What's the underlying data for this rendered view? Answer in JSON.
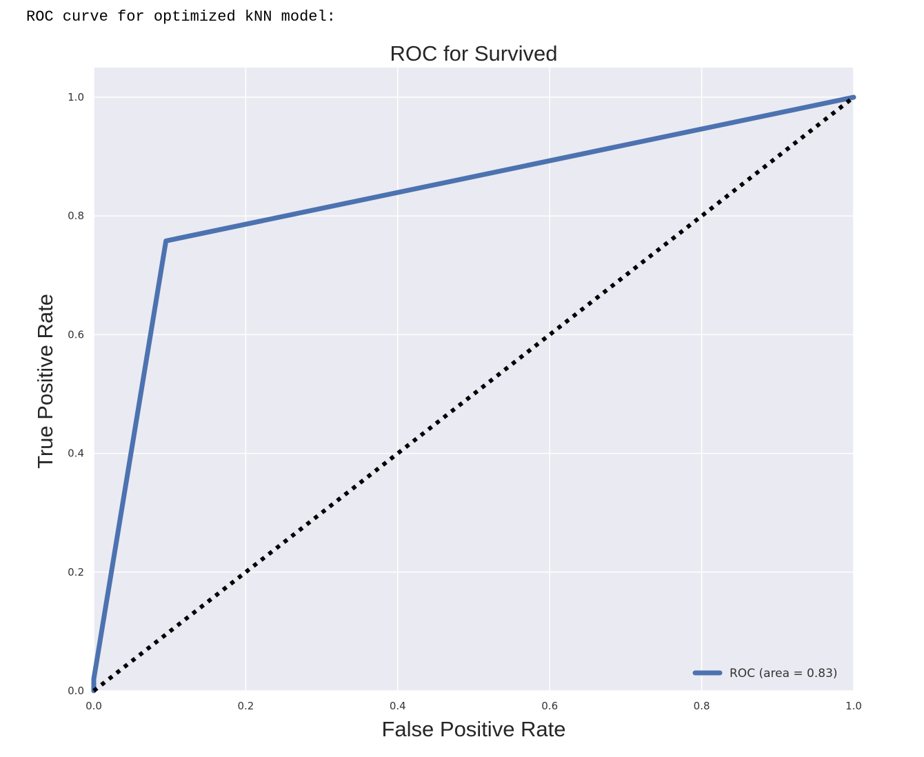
{
  "caption": "ROC curve for optimized kNN model:",
  "colors": {
    "plot_background": "#EAEAF2",
    "grid": "#FFFFFF",
    "roc_line": "#4C72B0",
    "chance_line": "#000000"
  },
  "chart_data": {
    "type": "line",
    "title": "ROC for Survived",
    "xlabel": "False Positive Rate",
    "ylabel": "True Positive Rate",
    "xlim": [
      0.0,
      1.0
    ],
    "ylim": [
      0.0,
      1.05
    ],
    "xticks": [
      0.0,
      0.2,
      0.4,
      0.6,
      0.8,
      1.0
    ],
    "xtick_labels": [
      "0.0",
      "0.2",
      "0.4",
      "0.6",
      "0.8",
      "1.0"
    ],
    "yticks": [
      0.0,
      0.2,
      0.4,
      0.6,
      0.8,
      1.0
    ],
    "ytick_labels": [
      "0.0",
      "0.2",
      "0.4",
      "0.6",
      "0.8",
      "1.0"
    ],
    "grid": true,
    "legend_position": "lower right",
    "series": [
      {
        "name": "ROC (area = 0.83)",
        "style": "solid",
        "color": "#4C72B0",
        "x": [
          0.0,
          0.0,
          0.095,
          1.0
        ],
        "y": [
          0.0,
          0.02,
          0.758,
          1.0
        ]
      },
      {
        "style": "dotted",
        "color": "#000000",
        "x": [
          0.0,
          1.0
        ],
        "y": [
          0.0,
          1.0
        ]
      }
    ]
  }
}
